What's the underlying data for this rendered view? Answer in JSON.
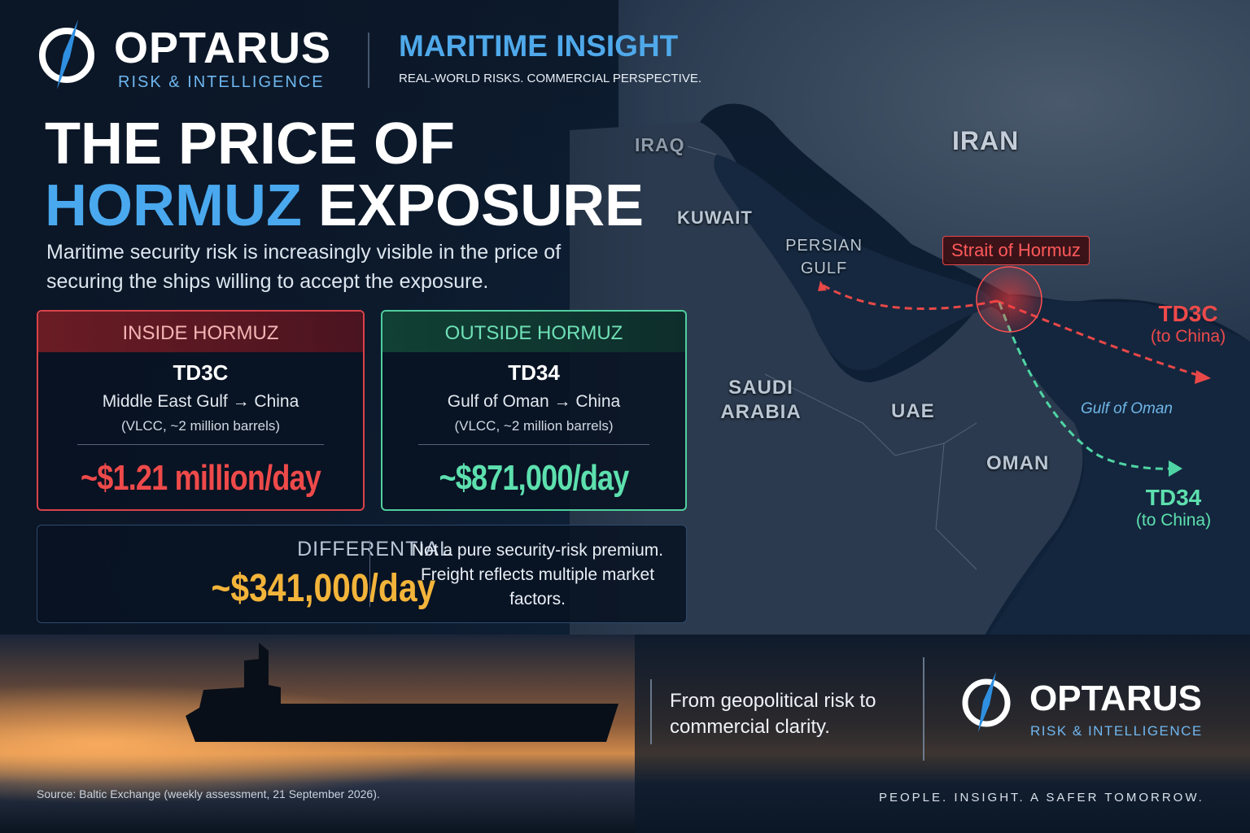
{
  "header": {
    "brand": "OPTARUS",
    "brand_tagline": "RISK & INTELLIGENCE",
    "section": "MARITIME INSIGHT",
    "strapline": "REAL-WORLD RISKS. COMMERCIAL PERSPECTIVE."
  },
  "title": {
    "line1": "THE PRICE OF",
    "highlight": "HORMUZ",
    "line2": "EXPOSURE"
  },
  "intro": "Maritime security risk is increasingly visible in the price of securing the ships willing to accept the exposure.",
  "cards": [
    {
      "header": "INSIDE HORMUZ",
      "route_code": "TD3C",
      "route": "Middle East Gulf → China",
      "detail": "(VLCC, ~2 million barrels)",
      "price": "~$1.21 million/day"
    },
    {
      "header": "OUTSIDE HORMUZ",
      "route_code": "TD34",
      "route": "Gulf of Oman → China",
      "detail": "(VLCC, ~2 million barrels)",
      "price": "~$871,000/day"
    }
  ],
  "differential": {
    "label": "DIFFERENTIAL",
    "value": "~$341,000/day",
    "note": "Not a pure security-risk premium. Freight reflects multiple market factors."
  },
  "map": {
    "countries": [
      "IRAQ",
      "IRAN",
      "KUWAIT",
      "PERSIAN GULF",
      "SAUDI ARABIA",
      "UAE",
      "OMAN"
    ],
    "strait": "Strait of Hormuz",
    "sea": "Gulf of Oman",
    "routes": [
      {
        "code": "TD3C",
        "destination": "(to China)"
      },
      {
        "code": "TD34",
        "destination": "(to China)"
      }
    ]
  },
  "footer": {
    "tagline": "From geopolitical risk to commercial clarity.",
    "brand": "OPTARUS",
    "brand_tagline": "RISK & INTELLIGENCE",
    "source": "Source: Baltic Exchange (weekly assessment, 21 September 2026).",
    "motto": "PEOPLE. INSIGHT. A SAFER TOMORROW."
  }
}
